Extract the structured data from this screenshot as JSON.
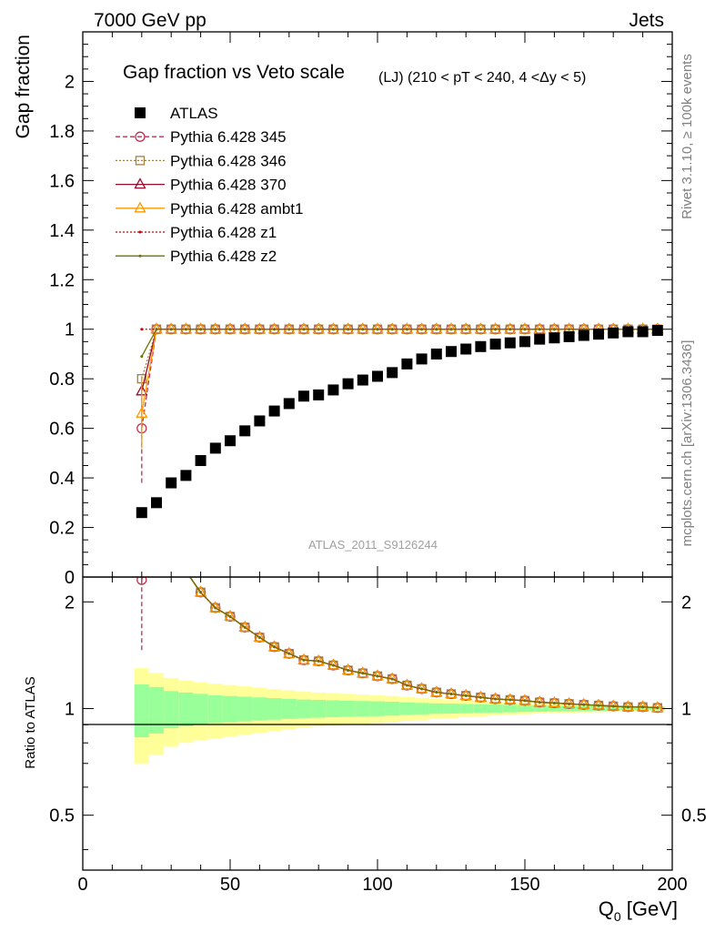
{
  "header": {
    "left": "7000 GeV pp",
    "right": "Jets"
  },
  "side_labels": {
    "rivet": "Rivet 3.1.10, ≥ 100k events",
    "mcplots": "mcplots.cern.ch [arXiv:1306.3436]"
  },
  "chart_data": {
    "type": "line",
    "title": "Gap fraction vs Veto scale",
    "subtitle": "(LJ) (210 < pT < 240, 4 <Δy < 5)",
    "watermark": "ATLAS_2011_S9126244",
    "xlabel": "Q",
    "xlabel_sub": "0",
    "xlabel_unit": " [GeV]",
    "ylabel_main": "Gap fraction",
    "ylabel_ratio": "Ratio to ATLAS",
    "xlim": [
      0,
      200
    ],
    "ylim_main": [
      0,
      2.2
    ],
    "ylim_ratio": [
      0.35,
      2.35
    ],
    "ratio_scale": "log",
    "x_ticks": [
      0,
      50,
      100,
      150,
      200
    ],
    "x_tick_labels": [
      "0",
      "50",
      "100",
      "150",
      "200"
    ],
    "y_ticks_main": [
      0,
      0.2,
      0.4,
      0.6,
      0.8,
      1,
      1.2,
      1.4,
      1.6,
      1.8,
      2
    ],
    "y_tick_labels_main": [
      "0",
      "0.2",
      "0.4",
      "0.6",
      "0.8",
      "1",
      "1.2",
      "1.4",
      "1.6",
      "1.8",
      "2"
    ],
    "y_ticks_ratio": [
      0.5,
      1,
      2
    ],
    "y_tick_labels_ratio": [
      "0.5",
      "1",
      "2"
    ],
    "legend_placement": "top-left",
    "x": [
      20,
      25,
      30,
      35,
      40,
      45,
      50,
      55,
      60,
      65,
      70,
      75,
      80,
      85,
      90,
      95,
      100,
      105,
      110,
      115,
      120,
      125,
      130,
      135,
      140,
      145,
      150,
      155,
      160,
      165,
      170,
      175,
      180,
      185,
      190,
      195
    ],
    "atlas": {
      "name": "ATLAS",
      "color": "#000000",
      "values": [
        0.26,
        0.3,
        0.38,
        0.41,
        0.47,
        0.52,
        0.55,
        0.59,
        0.63,
        0.67,
        0.7,
        0.73,
        0.735,
        0.755,
        0.78,
        0.795,
        0.81,
        0.825,
        0.86,
        0.88,
        0.9,
        0.91,
        0.92,
        0.93,
        0.94,
        0.945,
        0.95,
        0.96,
        0.965,
        0.97,
        0.975,
        0.98,
        0.985,
        0.99,
        0.99,
        0.995
      ]
    },
    "band_inner_rel": [
      0.17,
      0.15,
      0.12,
      0.11,
      0.1,
      0.09,
      0.085,
      0.08,
      0.075,
      0.07,
      0.065,
      0.06,
      0.058,
      0.055,
      0.052,
      0.05,
      0.048,
      0.045,
      0.04,
      0.037,
      0.034,
      0.032,
      0.03,
      0.028,
      0.026,
      0.024,
      0.022,
      0.02,
      0.018,
      0.017,
      0.016,
      0.015,
      0.014,
      0.013,
      0.012,
      0.011
    ],
    "band_outer_rel": [
      0.3,
      0.26,
      0.22,
      0.2,
      0.185,
      0.175,
      0.165,
      0.155,
      0.145,
      0.135,
      0.125,
      0.115,
      0.11,
      0.105,
      0.1,
      0.095,
      0.09,
      0.085,
      0.078,
      0.072,
      0.066,
      0.06,
      0.055,
      0.05,
      0.045,
      0.04,
      0.036,
      0.032,
      0.029,
      0.027,
      0.025,
      0.023,
      0.021,
      0.02,
      0.019,
      0.018
    ],
    "band_inner_color": "#99ff99",
    "band_outer_color": "#ffff99",
    "series": [
      {
        "name": "Pythia 6.428 345",
        "color": "#c03050",
        "marker": "circle-open",
        "dash": "dashed",
        "first": 0.6,
        "err": [
          0.38,
          0.81
        ]
      },
      {
        "name": "Pythia 6.428 346",
        "color": "#a08040",
        "marker": "square-open",
        "dash": "dotted",
        "first": 0.8,
        "err": null
      },
      {
        "name": "Pythia 6.428 370",
        "color": "#9a0a2a",
        "marker": "triangle-open",
        "dash": "solid",
        "first": 0.75,
        "err": null
      },
      {
        "name": "Pythia 6.428 ambt1",
        "color": "#ff9900",
        "marker": "triangle-open",
        "dash": "solid",
        "first": 0.66,
        "err": [
          0.52,
          0.81
        ]
      },
      {
        "name": "Pythia 6.428 z1",
        "color": "#cc0000",
        "marker": "dot",
        "dash": "dotted",
        "first": 1.0,
        "err": null
      },
      {
        "name": "Pythia 6.428 z2",
        "color": "#707000",
        "marker": "dot",
        "dash": "solid",
        "first": 0.89,
        "err": null
      }
    ],
    "mc_values_after_first": 1.0
  }
}
